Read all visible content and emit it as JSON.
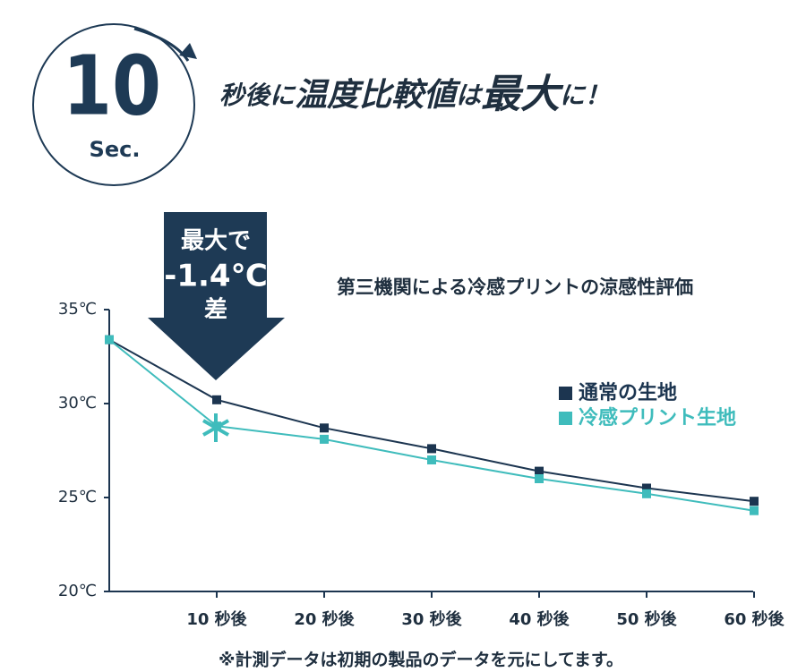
{
  "badge": {
    "number": "10",
    "unit": "Sec."
  },
  "headline": [
    "秒後に",
    "温度比較値",
    "は",
    "最大",
    "に！"
  ],
  "callout": [
    "最大で",
    "-1.4℃",
    "差"
  ],
  "footnote": "※計測データは初期の製品のデータを元にしてます。",
  "chart_data": {
    "type": "line",
    "title": "第三機関による冷感プリントの涼感性評価",
    "categories": [
      null,
      "10 秒後",
      "20 秒後",
      "30 秒後",
      "40 秒後",
      "50 秒後",
      "60 秒後"
    ],
    "series": [
      {
        "name": "通常の生地",
        "color": "#1c3550",
        "values": [
          33.4,
          30.2,
          28.7,
          27.6,
          26.4,
          25.5,
          24.8
        ]
      },
      {
        "name": "冷感プリント生地",
        "color": "#3fbcbc",
        "values": [
          33.4,
          28.8,
          28.1,
          27.0,
          26.0,
          25.2,
          24.3
        ]
      }
    ],
    "ylim": [
      20,
      35
    ],
    "yticks": [
      {
        "value": 20,
        "label": "20℃"
      },
      {
        "value": 25,
        "label": "25℃"
      },
      {
        "value": 30,
        "label": "30℃"
      },
      {
        "value": 35,
        "label": "35℃"
      }
    ],
    "legend": "right"
  }
}
